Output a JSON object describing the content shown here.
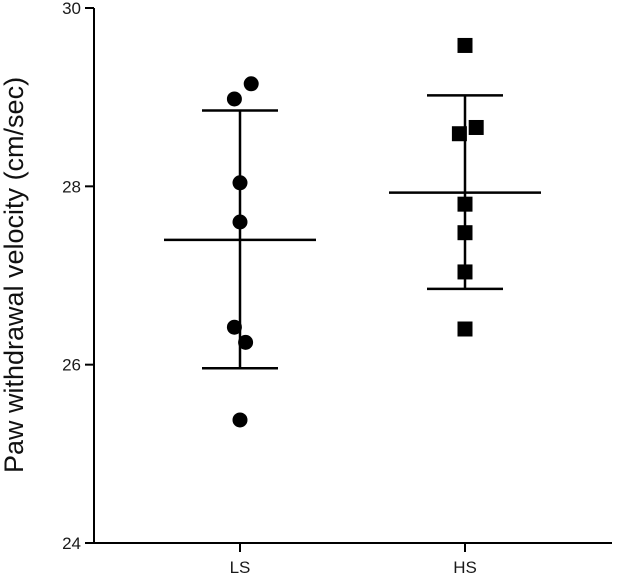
{
  "chart_data": {
    "type": "scatter",
    "ylabel": "Paw withdrawal velocity (cm/sec)",
    "xlabel": "",
    "ylim": [
      24,
      30
    ],
    "yticks": [
      24,
      26,
      28,
      30
    ],
    "categories": [
      "LS",
      "HS"
    ],
    "grid": false,
    "legend": "none",
    "series": [
      {
        "category": "LS",
        "marker": "circle",
        "points": [
          {
            "jitter": 0.1,
            "y": 29.15
          },
          {
            "jitter": -0.05,
            "y": 28.98
          },
          {
            "jitter": 0,
            "y": 28.04
          },
          {
            "jitter": 0,
            "y": 27.6
          },
          {
            "jitter": -0.05,
            "y": 26.42
          },
          {
            "jitter": 0.05,
            "y": 26.25
          },
          {
            "jitter": 0,
            "y": 25.38
          }
        ],
        "mean": 27.4,
        "sd_upper": 28.85,
        "sd_lower": 25.96
      },
      {
        "category": "HS",
        "marker": "square",
        "points": [
          {
            "jitter": 0,
            "y": 29.58
          },
          {
            "jitter": 0.1,
            "y": 28.66
          },
          {
            "jitter": -0.05,
            "y": 28.59
          },
          {
            "jitter": 0,
            "y": 27.8
          },
          {
            "jitter": 0,
            "y": 27.48
          },
          {
            "jitter": 0,
            "y": 27.04
          },
          {
            "jitter": 0,
            "y": 26.4
          }
        ],
        "mean": 27.93,
        "sd_upper": 29.02,
        "sd_lower": 26.85
      }
    ],
    "colors": {
      "marks": "#000000",
      "axis": "#000000"
    }
  }
}
